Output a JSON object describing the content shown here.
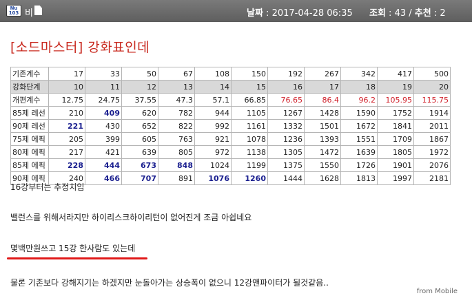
{
  "header": {
    "category_icon_text": "Nu 103",
    "category_label": "비",
    "date_label": "날짜",
    "date_value": "2017-04-28 06:35",
    "views_label": "조회",
    "views_value": "43",
    "recommend_label": "추천",
    "recommend_value": "2"
  },
  "post": {
    "title": "[소드마스터] 강화표인데",
    "lines": [
      "16강부터는 추정치임",
      "밸런스를 위해서라지만 하이리스크하이리턴이 없어진게 조금 아쉽네요",
      "몇백만원쓰고 15강 한사람도 있는데",
      "물론 기존보다 강해지기는 하겠지만 눈돌아가는 상승폭이 없으니 12강앤파이터가 될것같음.."
    ],
    "footer": "from Mobile"
  },
  "table": {
    "rows": [
      {
        "label": "기존계수",
        "shade": false,
        "cells": [
          {
            "v": "17"
          },
          {
            "v": "33"
          },
          {
            "v": "50"
          },
          {
            "v": "67"
          },
          {
            "v": "108"
          },
          {
            "v": "150"
          },
          {
            "v": "192"
          },
          {
            "v": "267"
          },
          {
            "v": "342"
          },
          {
            "v": "417"
          },
          {
            "v": "500"
          }
        ]
      },
      {
        "label": "강화단계",
        "shade": true,
        "cells": [
          {
            "v": "10"
          },
          {
            "v": "11"
          },
          {
            "v": "12"
          },
          {
            "v": "13"
          },
          {
            "v": "14"
          },
          {
            "v": "15"
          },
          {
            "v": "16"
          },
          {
            "v": "17"
          },
          {
            "v": "18"
          },
          {
            "v": "19"
          },
          {
            "v": "20"
          }
        ]
      },
      {
        "label": "개편계수",
        "shade": false,
        "cells": [
          {
            "v": "12.75"
          },
          {
            "v": "24.75"
          },
          {
            "v": "37.55"
          },
          {
            "v": "47.3"
          },
          {
            "v": "57.1"
          },
          {
            "v": "66.85"
          },
          {
            "v": "76.65",
            "c": "red"
          },
          {
            "v": "86.4",
            "c": "red"
          },
          {
            "v": "96.2",
            "c": "red"
          },
          {
            "v": "105.95",
            "c": "red"
          },
          {
            "v": "115.75",
            "c": "red"
          }
        ]
      },
      {
        "label": "85제 레선",
        "shade": false,
        "cells": [
          {
            "v": "210"
          },
          {
            "v": "409",
            "c": "blue"
          },
          {
            "v": "620"
          },
          {
            "v": "782"
          },
          {
            "v": "944"
          },
          {
            "v": "1105"
          },
          {
            "v": "1267"
          },
          {
            "v": "1428"
          },
          {
            "v": "1590"
          },
          {
            "v": "1752"
          },
          {
            "v": "1914"
          }
        ]
      },
      {
        "label": "90제 레선",
        "shade": false,
        "cells": [
          {
            "v": "221",
            "c": "blue"
          },
          {
            "v": "430"
          },
          {
            "v": "652"
          },
          {
            "v": "822"
          },
          {
            "v": "992"
          },
          {
            "v": "1161"
          },
          {
            "v": "1332"
          },
          {
            "v": "1501"
          },
          {
            "v": "1672"
          },
          {
            "v": "1841"
          },
          {
            "v": "2011"
          }
        ]
      },
      {
        "label": "75제 에픽",
        "shade": false,
        "cells": [
          {
            "v": "205"
          },
          {
            "v": "399"
          },
          {
            "v": "605"
          },
          {
            "v": "763"
          },
          {
            "v": "921"
          },
          {
            "v": "1078"
          },
          {
            "v": "1236"
          },
          {
            "v": "1393"
          },
          {
            "v": "1551"
          },
          {
            "v": "1709"
          },
          {
            "v": "1867"
          }
        ]
      },
      {
        "label": "80제 에픽",
        "shade": false,
        "cells": [
          {
            "v": "217"
          },
          {
            "v": "421"
          },
          {
            "v": "639"
          },
          {
            "v": "805"
          },
          {
            "v": "972"
          },
          {
            "v": "1138"
          },
          {
            "v": "1305"
          },
          {
            "v": "1472"
          },
          {
            "v": "1639"
          },
          {
            "v": "1805"
          },
          {
            "v": "1972"
          }
        ]
      },
      {
        "label": "85제 에픽",
        "shade": false,
        "cells": [
          {
            "v": "228",
            "c": "blue"
          },
          {
            "v": "444",
            "c": "blue"
          },
          {
            "v": "673",
            "c": "blue"
          },
          {
            "v": "848",
            "c": "blue"
          },
          {
            "v": "1024"
          },
          {
            "v": "1199"
          },
          {
            "v": "1375"
          },
          {
            "v": "1550"
          },
          {
            "v": "1726"
          },
          {
            "v": "1901"
          },
          {
            "v": "2076"
          }
        ]
      },
      {
        "label": "90제 에픽",
        "shade": false,
        "cells": [
          {
            "v": "240"
          },
          {
            "v": "466",
            "c": "blue"
          },
          {
            "v": "707",
            "c": "blue"
          },
          {
            "v": "891"
          },
          {
            "v": "1076",
            "c": "blue"
          },
          {
            "v": "1260",
            "c": "blue"
          },
          {
            "v": "1444"
          },
          {
            "v": "1628"
          },
          {
            "v": "1813"
          },
          {
            "v": "1997"
          },
          {
            "v": "2181"
          }
        ]
      }
    ]
  },
  "colors": {
    "title": "#c8281e",
    "highlight_red": "#d0202a",
    "highlight_blue": "#1a1f8f",
    "header_bg": "#6a6a6a",
    "underline_mark": "#e01818"
  }
}
